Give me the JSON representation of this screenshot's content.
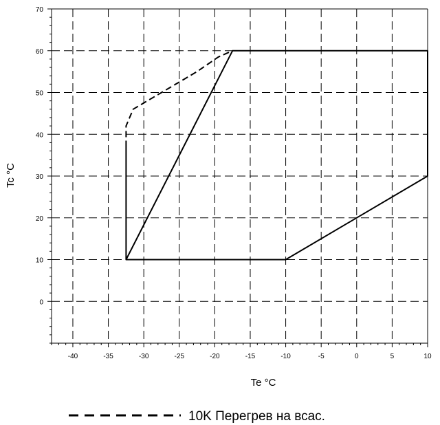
{
  "chart_data": {
    "type": "line",
    "title": "",
    "xlabel": "Te °C",
    "ylabel": "Tc °C",
    "xlim": [
      -43,
      10
    ],
    "ylim": [
      -10,
      70
    ],
    "grid": true,
    "x_ticks": [
      -40,
      -35,
      -30,
      -25,
      -20,
      -15,
      -10,
      -5,
      0,
      5,
      10
    ],
    "y_ticks": [
      0,
      10,
      20,
      30,
      40,
      50,
      60,
      70
    ],
    "series": [
      {
        "name": "",
        "style": "solid",
        "x": [
          -32.5,
          -32.5,
          -17.5,
          10,
          10,
          -10,
          -16.5,
          -32.5,
          -32.5
        ],
        "y": [
          37,
          10,
          60,
          60,
          30,
          10,
          10,
          10,
          37
        ]
      },
      {
        "name": "10K Перегрев на всас.",
        "style": "dashed",
        "x": [
          -32.5,
          -32.5,
          -31.5,
          -27,
          -22.5,
          -19.5,
          -17.5
        ],
        "y": [
          37,
          42,
          46,
          50.5,
          55,
          58.5,
          60
        ]
      }
    ],
    "legend": {
      "position": "bottom",
      "entries": [
        "10K Перегрев на всас."
      ]
    },
    "colors": {
      "line": "#000000",
      "grid": "#000000",
      "background": "#ffffff"
    }
  }
}
